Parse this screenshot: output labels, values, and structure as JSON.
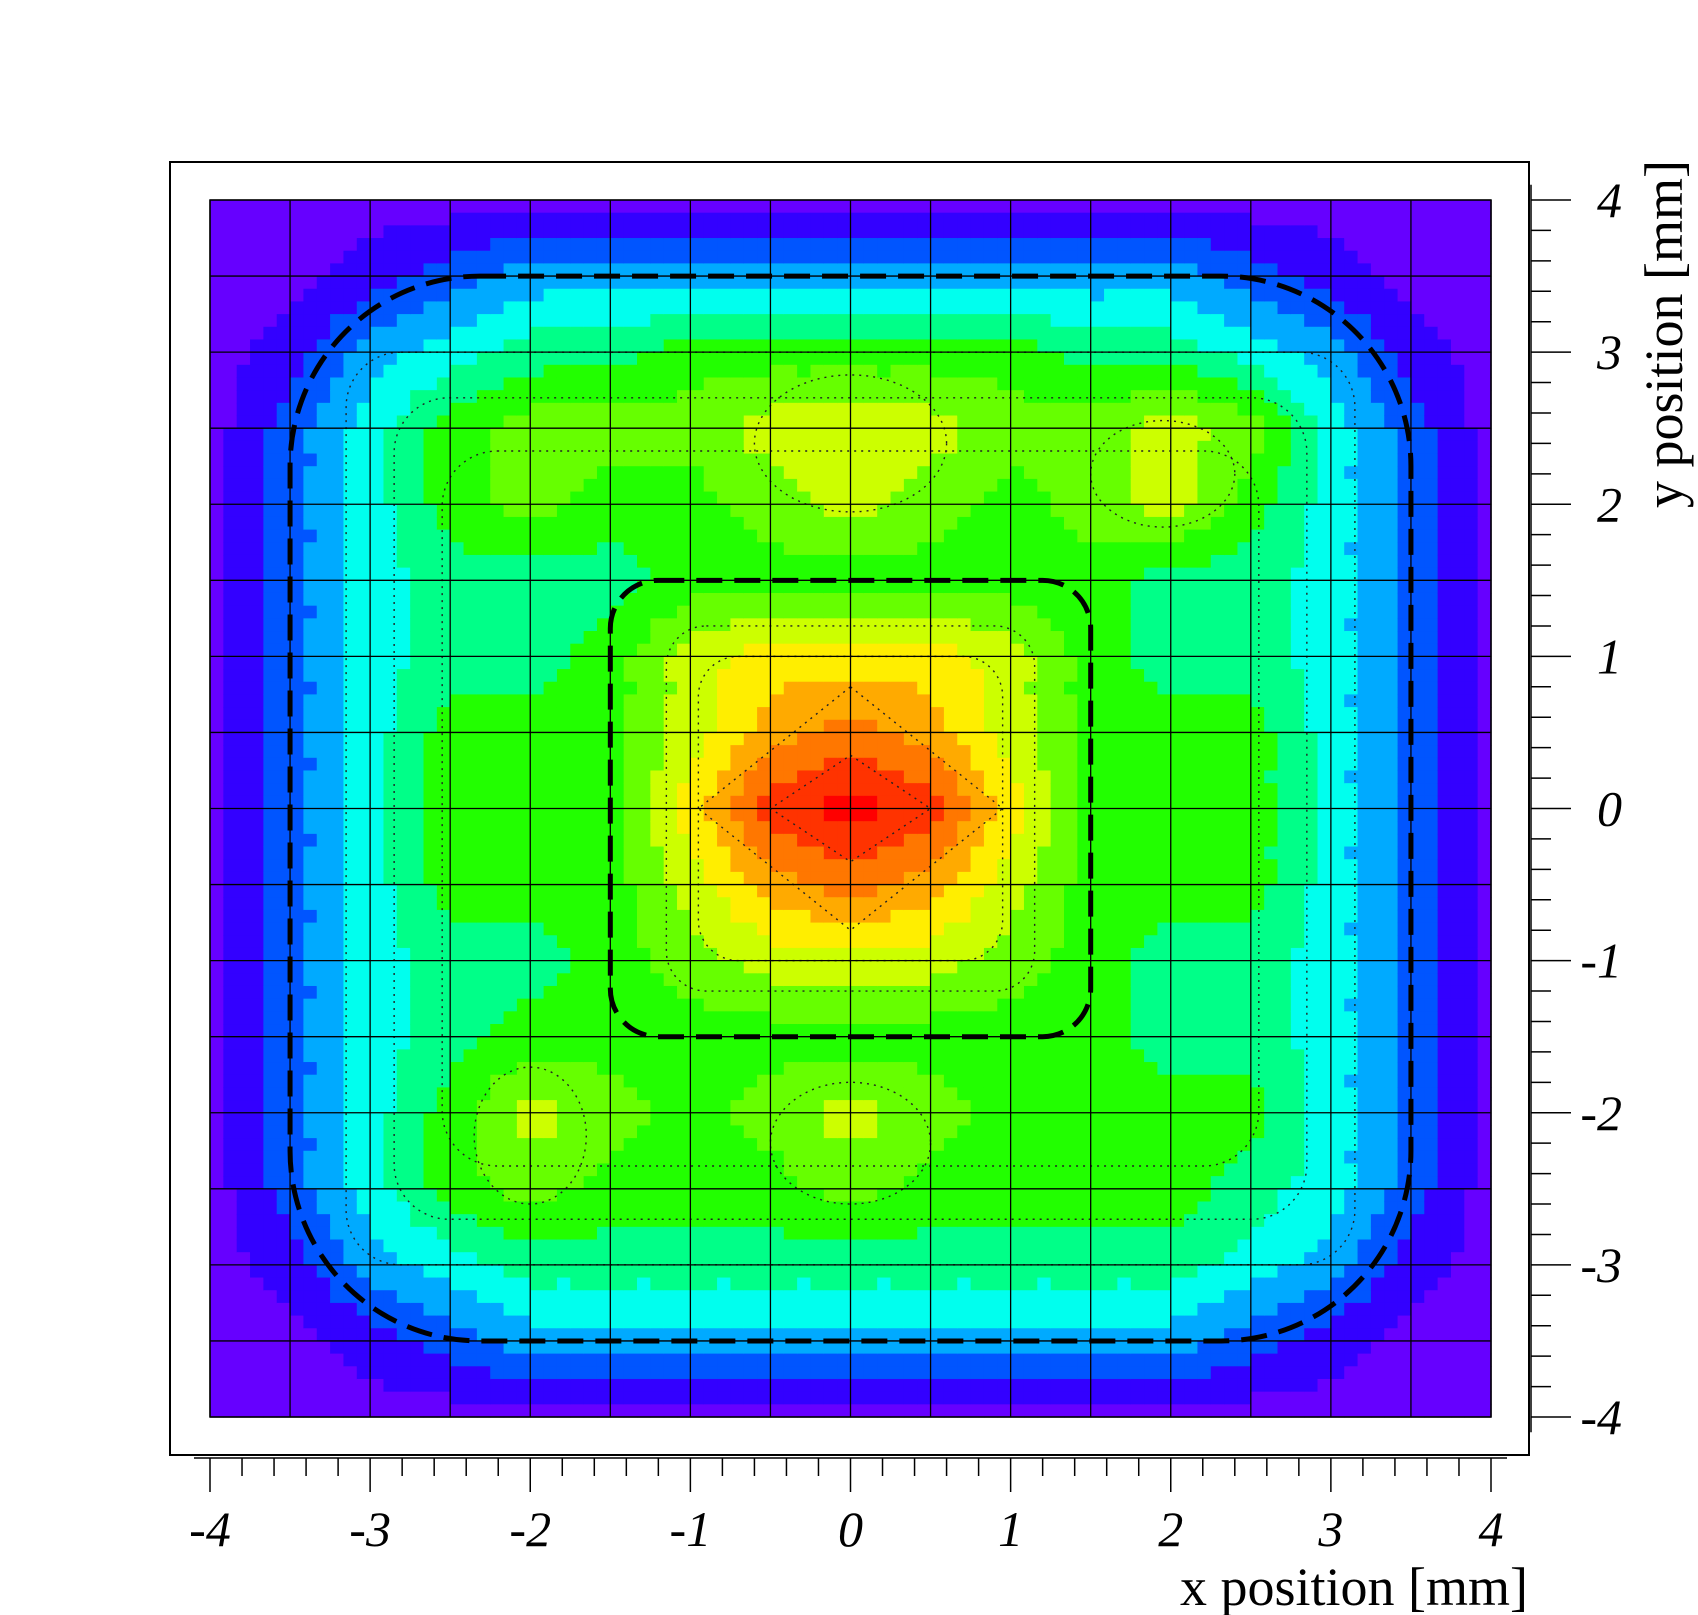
{
  "chart_data": {
    "type": "heatmap",
    "title": "",
    "xlabel": "x position [mm]",
    "ylabel": "y position [mm]",
    "xlim": [
      -4,
      4
    ],
    "ylim": [
      -4,
      4
    ],
    "x_ticks": [
      "-4",
      "-3",
      "-2",
      "-1",
      "0",
      "1",
      "2",
      "3",
      "4"
    ],
    "y_ticks": [
      "4",
      "3",
      "2",
      "1",
      "0",
      "-1",
      "-2",
      "-3",
      "-4"
    ],
    "grid": true,
    "colorscale": [
      "#6600ff",
      "#3300ff",
      "#0055ff",
      "#00aaff",
      "#00ffee",
      "#00ff88",
      "#22ff00",
      "#66ff00",
      "#ccff00",
      "#ffee00",
      "#ffaa00",
      "#ff7700",
      "#ff3300",
      "#ff0000"
    ],
    "x": [
      -4,
      -3.5,
      -3,
      -2.5,
      -2,
      -1.5,
      -1,
      -0.5,
      0,
      0.5,
      1,
      1.5,
      2,
      2.5,
      3,
      3.5,
      4
    ],
    "y": [
      4,
      3.5,
      3,
      2.5,
      2,
      1.5,
      1,
      0.5,
      0,
      -0.5,
      -1,
      -1.5,
      -2,
      -2.5,
      -3,
      -3.5,
      -4
    ],
    "z": [
      [
        0,
        0,
        0,
        0,
        0,
        0,
        0,
        0,
        0,
        0,
        0,
        0,
        0,
        0,
        0,
        0,
        0
      ],
      [
        0,
        0,
        1,
        2,
        3,
        3,
        3,
        3,
        3,
        3,
        3,
        3,
        3,
        2,
        1,
        0,
        0
      ],
      [
        0,
        1,
        3,
        4,
        5,
        5,
        6,
        6,
        6,
        6,
        6,
        5,
        5,
        4,
        3,
        1,
        0
      ],
      [
        0,
        2,
        4,
        6,
        7,
        7,
        7,
        8,
        8,
        8,
        7,
        7,
        8,
        7,
        4,
        2,
        0
      ],
      [
        0,
        2,
        4,
        6,
        7,
        6,
        6,
        7,
        8,
        7,
        6,
        7,
        8,
        6,
        4,
        2,
        0
      ],
      [
        0,
        2,
        4,
        5,
        5,
        5,
        6,
        6,
        6,
        6,
        6,
        6,
        5,
        5,
        4,
        2,
        0
      ],
      [
        0,
        2,
        4,
        5,
        5,
        6,
        8,
        9,
        9,
        9,
        8,
        6,
        5,
        5,
        4,
        2,
        0
      ],
      [
        0,
        2,
        4,
        6,
        6,
        6,
        8,
        10,
        11,
        10,
        8,
        6,
        6,
        6,
        4,
        2,
        0
      ],
      [
        0,
        2,
        4,
        6,
        6,
        6,
        9,
        12,
        13,
        12,
        9,
        6,
        6,
        6,
        4,
        2,
        0
      ],
      [
        0,
        2,
        4,
        6,
        6,
        6,
        8,
        10,
        11,
        10,
        8,
        6,
        6,
        6,
        4,
        2,
        0
      ],
      [
        0,
        2,
        4,
        5,
        5,
        6,
        7,
        8,
        8,
        8,
        7,
        6,
        5,
        5,
        4,
        2,
        0
      ],
      [
        0,
        2,
        4,
        5,
        6,
        6,
        6,
        6,
        6,
        6,
        6,
        6,
        5,
        5,
        4,
        2,
        0
      ],
      [
        0,
        2,
        4,
        6,
        8,
        7,
        6,
        7,
        8,
        7,
        6,
        6,
        6,
        6,
        4,
        2,
        0
      ],
      [
        0,
        2,
        4,
        6,
        7,
        6,
        6,
        6,
        7,
        6,
        6,
        6,
        6,
        5,
        4,
        2,
        0
      ],
      [
        0,
        1,
        3,
        4,
        5,
        5,
        5,
        5,
        5,
        5,
        5,
        5,
        5,
        4,
        3,
        1,
        0
      ],
      [
        0,
        0,
        1,
        2,
        3,
        3,
        3,
        3,
        3,
        3,
        3,
        3,
        3,
        2,
        1,
        0,
        0
      ],
      [
        0,
        0,
        0,
        0,
        0,
        0,
        0,
        0,
        0,
        0,
        0,
        0,
        0,
        0,
        0,
        0,
        0
      ]
    ]
  }
}
